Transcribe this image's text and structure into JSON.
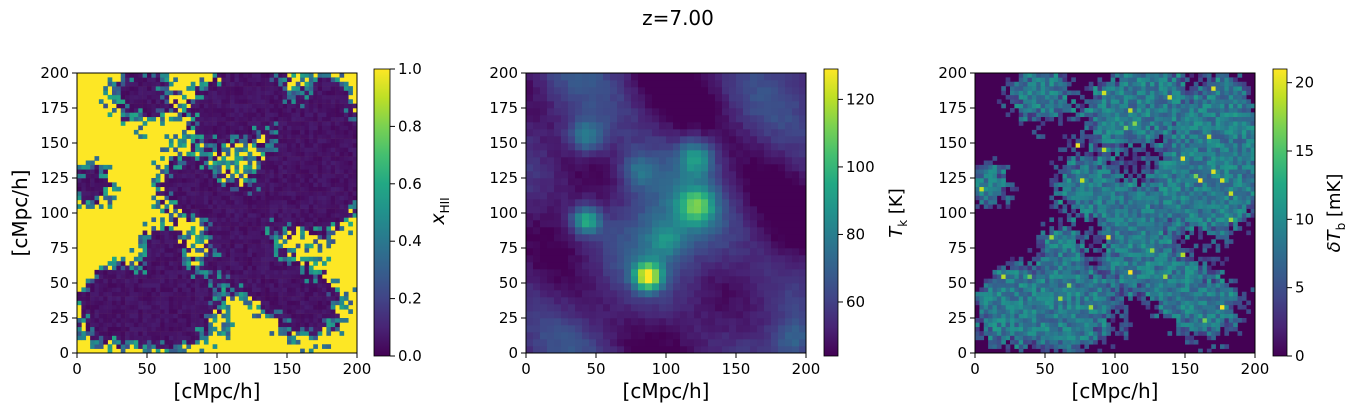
{
  "figure": {
    "title": "z=7.00"
  },
  "chart_data": [
    {
      "type": "heatmap",
      "field": "ionized_fraction",
      "xlabel": "[cMpc/h]",
      "ylabel": "[cMpc/h]",
      "xlim": [
        0,
        200
      ],
      "ylim": [
        0,
        200
      ],
      "xticks": [
        "0",
        "50",
        "100",
        "150",
        "200"
      ],
      "yticks": [
        "0",
        "25",
        "50",
        "75",
        "100",
        "125",
        "150",
        "175",
        "200"
      ],
      "grid": [
        64,
        64
      ],
      "colormap": "viridis",
      "colorbar": {
        "label": "x_HII",
        "label_main": "x",
        "label_sub": "HII",
        "range": [
          0.0,
          1.0
        ],
        "ticks": [
          "0.0",
          "0.2",
          "0.4",
          "0.6",
          "0.8",
          "1.0"
        ],
        "tick_values": [
          0.0,
          0.2,
          0.4,
          0.6,
          0.8,
          1.0
        ]
      },
      "neutral_regions_center_xy": [
        [
          22,
          28
        ],
        [
          28,
          45
        ],
        [
          55,
          30
        ],
        [
          75,
          35
        ],
        [
          80,
          120
        ],
        [
          100,
          170
        ],
        [
          140,
          50
        ],
        [
          150,
          120
        ],
        [
          175,
          110
        ],
        [
          190,
          140
        ],
        [
          170,
          155
        ],
        [
          110,
          100
        ],
        [
          130,
          185
        ],
        [
          180,
          185
        ],
        [
          45,
          185
        ],
        [
          10,
          120
        ],
        [
          60,
          75
        ],
        [
          120,
          70
        ],
        [
          165,
          35
        ]
      ]
    },
    {
      "type": "heatmap",
      "field": "kinetic_temperature",
      "xlabel": "[cMpc/h]",
      "ylabel": "",
      "xlim": [
        0,
        200
      ],
      "ylim": [
        0,
        200
      ],
      "xticks": [
        "0",
        "50",
        "100",
        "150",
        "200"
      ],
      "yticks": [
        "0",
        "25",
        "50",
        "75",
        "100",
        "125",
        "150",
        "175",
        "200"
      ],
      "grid": [
        40,
        40
      ],
      "colormap": "viridis",
      "colorbar": {
        "label": "T_k [K]",
        "label_main": "T",
        "label_sub": "k",
        "label_unit": " [K]",
        "range": [
          44,
          129
        ],
        "ticks": [
          "60",
          "80",
          "100",
          "120"
        ],
        "tick_values": [
          60,
          80,
          100,
          120
        ]
      },
      "hot_spots_xy": [
        [
          87,
          55
        ],
        [
          43,
          95
        ],
        [
          122,
          105
        ],
        [
          122,
          140
        ],
        [
          43,
          155
        ],
        [
          80,
          130
        ],
        [
          100,
          80
        ],
        [
          190,
          10
        ]
      ]
    },
    {
      "type": "heatmap",
      "field": "differential_brightness_temperature",
      "xlabel": "[cMpc/h]",
      "ylabel": "",
      "xlim": [
        0,
        200
      ],
      "ylim": [
        0,
        200
      ],
      "xticks": [
        "0",
        "50",
        "100",
        "150",
        "200"
      ],
      "yticks": [
        "0",
        "25",
        "50",
        "75",
        "100",
        "125",
        "150",
        "175",
        "200"
      ],
      "grid": [
        64,
        64
      ],
      "colormap": "viridis",
      "colorbar": {
        "label": "δT_b [mK]",
        "label_main": "δT",
        "label_sub": "b",
        "label_unit": " [mK]",
        "range": [
          0,
          21
        ],
        "ticks": [
          "0",
          "5",
          "10",
          "15",
          "20"
        ],
        "tick_values": [
          0,
          5,
          10,
          15,
          20
        ]
      }
    }
  ]
}
